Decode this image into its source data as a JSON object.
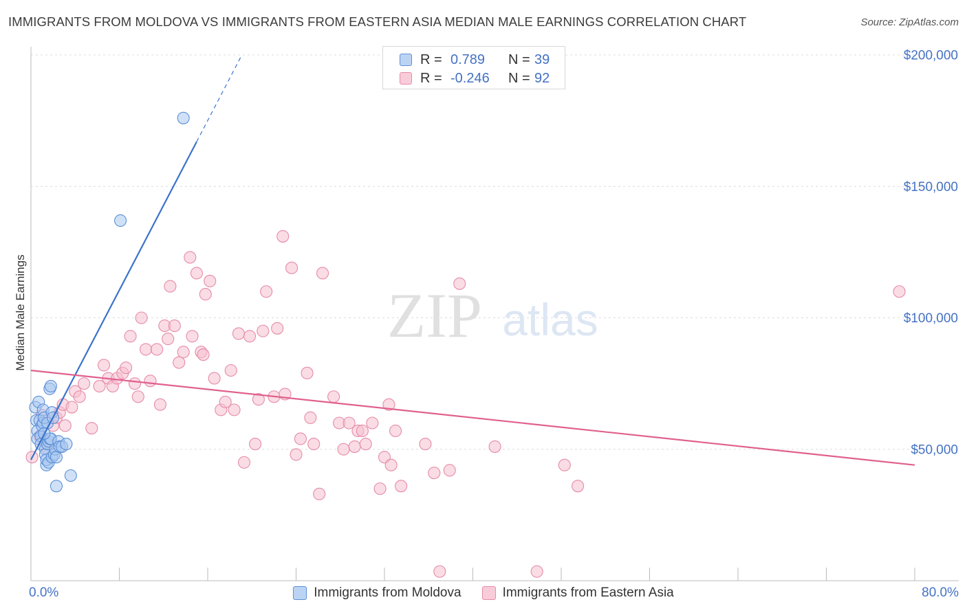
{
  "title": "IMMIGRANTS FROM MOLDOVA VS IMMIGRANTS FROM EASTERN ASIA MEDIAN MALE EARNINGS CORRELATION CHART",
  "source": "Source: ZipAtlas.com",
  "watermark": {
    "zip": "ZIP",
    "atlas": "atlas"
  },
  "colors": {
    "moldova_fill": "#a9c8f0",
    "moldova_stroke": "#5b8fd6",
    "moldova_line": "#3a72cc",
    "asia_fill": "#f6bfd0",
    "asia_stroke": "#e58aa8",
    "asia_line": "#e0608e",
    "grid": "#dcdcdc",
    "axis_text": "#4472c4"
  },
  "legend": {
    "rows": [
      {
        "r_label": "R =",
        "r_value": "0.789",
        "n_label": "N =",
        "n_value": "39"
      },
      {
        "r_label": "R =",
        "r_value": "-0.246",
        "n_label": "N =",
        "n_value": "92"
      }
    ]
  },
  "bottom_legend": [
    "Immigrants from Moldova",
    "Immigrants from Eastern Asia"
  ],
  "chart_data": {
    "type": "scatter",
    "xlabel": "",
    "ylabel": "Median Male Earnings",
    "xlim": [
      0,
      80
    ],
    "ylim": [
      0,
      210000
    ],
    "x_tick_labels": {
      "min": "0.0%",
      "max": "80.0%"
    },
    "y_ticks": [
      {
        "value": 50000,
        "label": "$50,000"
      },
      {
        "value": 100000,
        "label": "$100,000"
      },
      {
        "value": 150000,
        "label": "$150,000"
      },
      {
        "value": 200000,
        "label": "$200,000"
      }
    ],
    "grid": true,
    "series": [
      {
        "name": "Immigrants from Moldova",
        "trend": {
          "x0": 0.0,
          "y0": 46000,
          "x1": 15.0,
          "y1": 167000,
          "x_dash_end": 19.0
        },
        "points": [
          [
            0.4,
            66000
          ],
          [
            0.5,
            61000
          ],
          [
            0.6,
            57000
          ],
          [
            0.6,
            54000
          ],
          [
            0.7,
            68000
          ],
          [
            0.8,
            61000
          ],
          [
            0.9,
            55000
          ],
          [
            0.9,
            52000
          ],
          [
            1.0,
            59000
          ],
          [
            1.1,
            65000
          ],
          [
            1.1,
            60000
          ],
          [
            1.2,
            62000
          ],
          [
            1.3,
            50000
          ],
          [
            1.3,
            48000
          ],
          [
            1.4,
            44000
          ],
          [
            1.4,
            46000
          ],
          [
            1.5,
            60000
          ],
          [
            1.5,
            52000
          ],
          [
            1.6,
            45000
          ],
          [
            1.6,
            53000
          ],
          [
            1.7,
            54000
          ],
          [
            1.7,
            73000
          ],
          [
            1.8,
            54000
          ],
          [
            1.8,
            74000
          ],
          [
            1.9,
            64000
          ],
          [
            1.9,
            47000
          ],
          [
            2.0,
            62000
          ],
          [
            2.1,
            48000
          ],
          [
            2.2,
            50000
          ],
          [
            2.3,
            47000
          ],
          [
            2.3,
            36000
          ],
          [
            2.5,
            53000
          ],
          [
            2.6,
            51000
          ],
          [
            2.8,
            51000
          ],
          [
            3.2,
            52000
          ],
          [
            3.6,
            40000
          ],
          [
            8.1,
            137000
          ],
          [
            13.8,
            176000
          ],
          [
            1.2,
            56000
          ]
        ]
      },
      {
        "name": "Immigrants from Eastern Asia",
        "trend": {
          "x0": 0.0,
          "y0": 80000,
          "x1": 80.0,
          "y1": 44000
        },
        "points": [
          [
            0.1,
            47000
          ],
          [
            0.8,
            55000
          ],
          [
            1.0,
            63000
          ],
          [
            1.2,
            53000
          ],
          [
            1.5,
            50000
          ],
          [
            2.0,
            59000
          ],
          [
            2.3,
            62000
          ],
          [
            2.6,
            64000
          ],
          [
            2.9,
            67000
          ],
          [
            3.1,
            59000
          ],
          [
            3.7,
            66000
          ],
          [
            4.0,
            72000
          ],
          [
            4.4,
            70000
          ],
          [
            4.8,
            75000
          ],
          [
            5.5,
            58000
          ],
          [
            6.2,
            74000
          ],
          [
            6.6,
            82000
          ],
          [
            7.0,
            77000
          ],
          [
            7.4,
            74000
          ],
          [
            7.8,
            77000
          ],
          [
            8.3,
            79000
          ],
          [
            8.6,
            81000
          ],
          [
            9.0,
            93000
          ],
          [
            9.4,
            75000
          ],
          [
            9.7,
            70000
          ],
          [
            10.0,
            100000
          ],
          [
            10.4,
            88000
          ],
          [
            10.8,
            76000
          ],
          [
            11.4,
            88000
          ],
          [
            11.7,
            67000
          ],
          [
            12.1,
            97000
          ],
          [
            12.4,
            92000
          ],
          [
            12.6,
            112000
          ],
          [
            13.0,
            97000
          ],
          [
            13.4,
            83000
          ],
          [
            13.8,
            87000
          ],
          [
            14.4,
            123000
          ],
          [
            14.6,
            93000
          ],
          [
            15.0,
            117000
          ],
          [
            15.4,
            87000
          ],
          [
            15.8,
            109000
          ],
          [
            16.2,
            114000
          ],
          [
            16.6,
            77000
          ],
          [
            17.2,
            65000
          ],
          [
            17.6,
            68000
          ],
          [
            18.1,
            80000
          ],
          [
            18.4,
            65000
          ],
          [
            18.8,
            94000
          ],
          [
            19.3,
            45000
          ],
          [
            19.8,
            93000
          ],
          [
            20.3,
            52000
          ],
          [
            20.6,
            69000
          ],
          [
            21.0,
            95000
          ],
          [
            21.3,
            110000
          ],
          [
            22.0,
            70000
          ],
          [
            22.3,
            96000
          ],
          [
            22.8,
            131000
          ],
          [
            23.0,
            71000
          ],
          [
            23.6,
            119000
          ],
          [
            24.0,
            48000
          ],
          [
            24.4,
            54000
          ],
          [
            25.0,
            79000
          ],
          [
            25.3,
            62000
          ],
          [
            25.6,
            52000
          ],
          [
            26.1,
            33000
          ],
          [
            26.4,
            117000
          ],
          [
            27.4,
            70000
          ],
          [
            27.9,
            60000
          ],
          [
            28.3,
            50000
          ],
          [
            28.8,
            60000
          ],
          [
            29.3,
            51000
          ],
          [
            29.6,
            57000
          ],
          [
            30.0,
            57000
          ],
          [
            30.3,
            52000
          ],
          [
            30.9,
            60000
          ],
          [
            31.6,
            35000
          ],
          [
            32.0,
            47000
          ],
          [
            32.4,
            67000
          ],
          [
            32.6,
            44000
          ],
          [
            33.0,
            57000
          ],
          [
            33.5,
            36000
          ],
          [
            35.7,
            52000
          ],
          [
            36.5,
            41000
          ],
          [
            37.0,
            3500
          ],
          [
            37.9,
            42000
          ],
          [
            38.8,
            113000
          ],
          [
            42.0,
            51000
          ],
          [
            45.8,
            3500
          ],
          [
            48.3,
            44000
          ],
          [
            49.5,
            36000
          ],
          [
            78.6,
            110000
          ],
          [
            15.6,
            86000
          ]
        ]
      }
    ]
  }
}
